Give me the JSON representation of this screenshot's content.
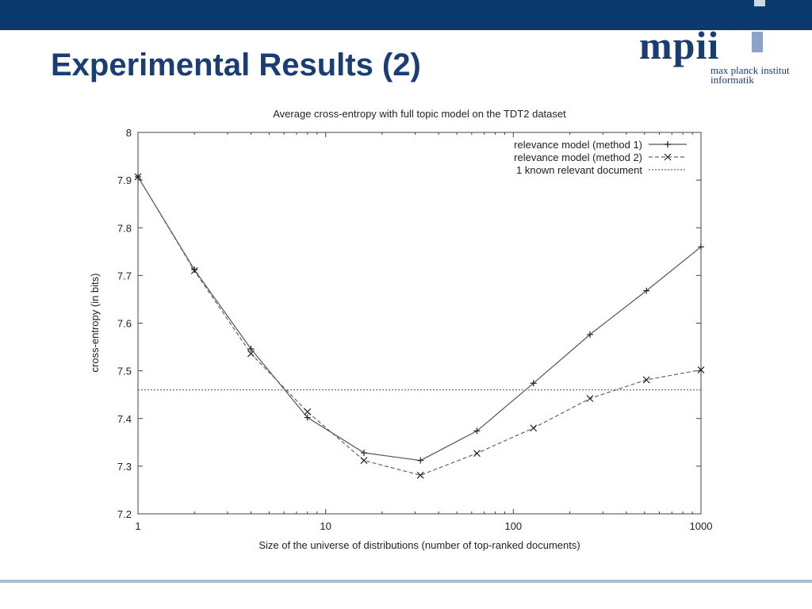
{
  "slide": {
    "title": "Experimental Results (2)"
  },
  "logo": {
    "word": "mpii",
    "line1": "max planck institut",
    "line2": "informatik"
  },
  "colors": {
    "top_bar": "#0b3b6e",
    "title": "#1a3d73",
    "footer_line": "#a9bfcf"
  },
  "chart_data": {
    "type": "line",
    "title": "Average cross-entropy with full topic model on the TDT2 dataset",
    "xlabel": "Size of the universe of distributions (number of top-ranked documents)",
    "ylabel": "cross-entropy (in bits)",
    "xscale": "log",
    "xlim": [
      1,
      1000
    ],
    "ylim": [
      7.2,
      8.0
    ],
    "xticks": [
      1,
      10,
      100,
      1000
    ],
    "xtick_labels": [
      "1",
      "10",
      "100",
      "1000"
    ],
    "yticks": [
      7.2,
      7.3,
      7.4,
      7.5,
      7.6,
      7.7,
      7.8,
      7.9,
      8.0
    ],
    "ytick_labels": [
      "7.2",
      "7.3",
      "7.4",
      "7.5",
      "7.6",
      "7.7",
      "7.8",
      "7.9",
      "8"
    ],
    "grid": false,
    "legend_position": "top-right",
    "series": [
      {
        "name": "relevance model (method 1)",
        "style": "solid",
        "marker": "plus",
        "x": [
          1,
          2,
          4,
          8,
          16,
          32,
          64,
          128,
          256,
          512,
          1000
        ],
        "y": [
          7.907,
          7.712,
          7.546,
          7.402,
          7.328,
          7.312,
          7.374,
          7.474,
          7.576,
          7.668,
          7.76
        ]
      },
      {
        "name": "relevance model (method 2)",
        "style": "dashed",
        "marker": "cross",
        "x": [
          1,
          2,
          4,
          8,
          16,
          32,
          64,
          128,
          256,
          512,
          1000
        ],
        "y": [
          7.907,
          7.71,
          7.536,
          7.414,
          7.312,
          7.281,
          7.327,
          7.38,
          7.442,
          7.481,
          7.502
        ]
      },
      {
        "name": "1 known relevant document",
        "style": "dotted",
        "marker": "none",
        "x": [
          1,
          1000
        ],
        "y": [
          7.46,
          7.46
        ]
      }
    ]
  }
}
